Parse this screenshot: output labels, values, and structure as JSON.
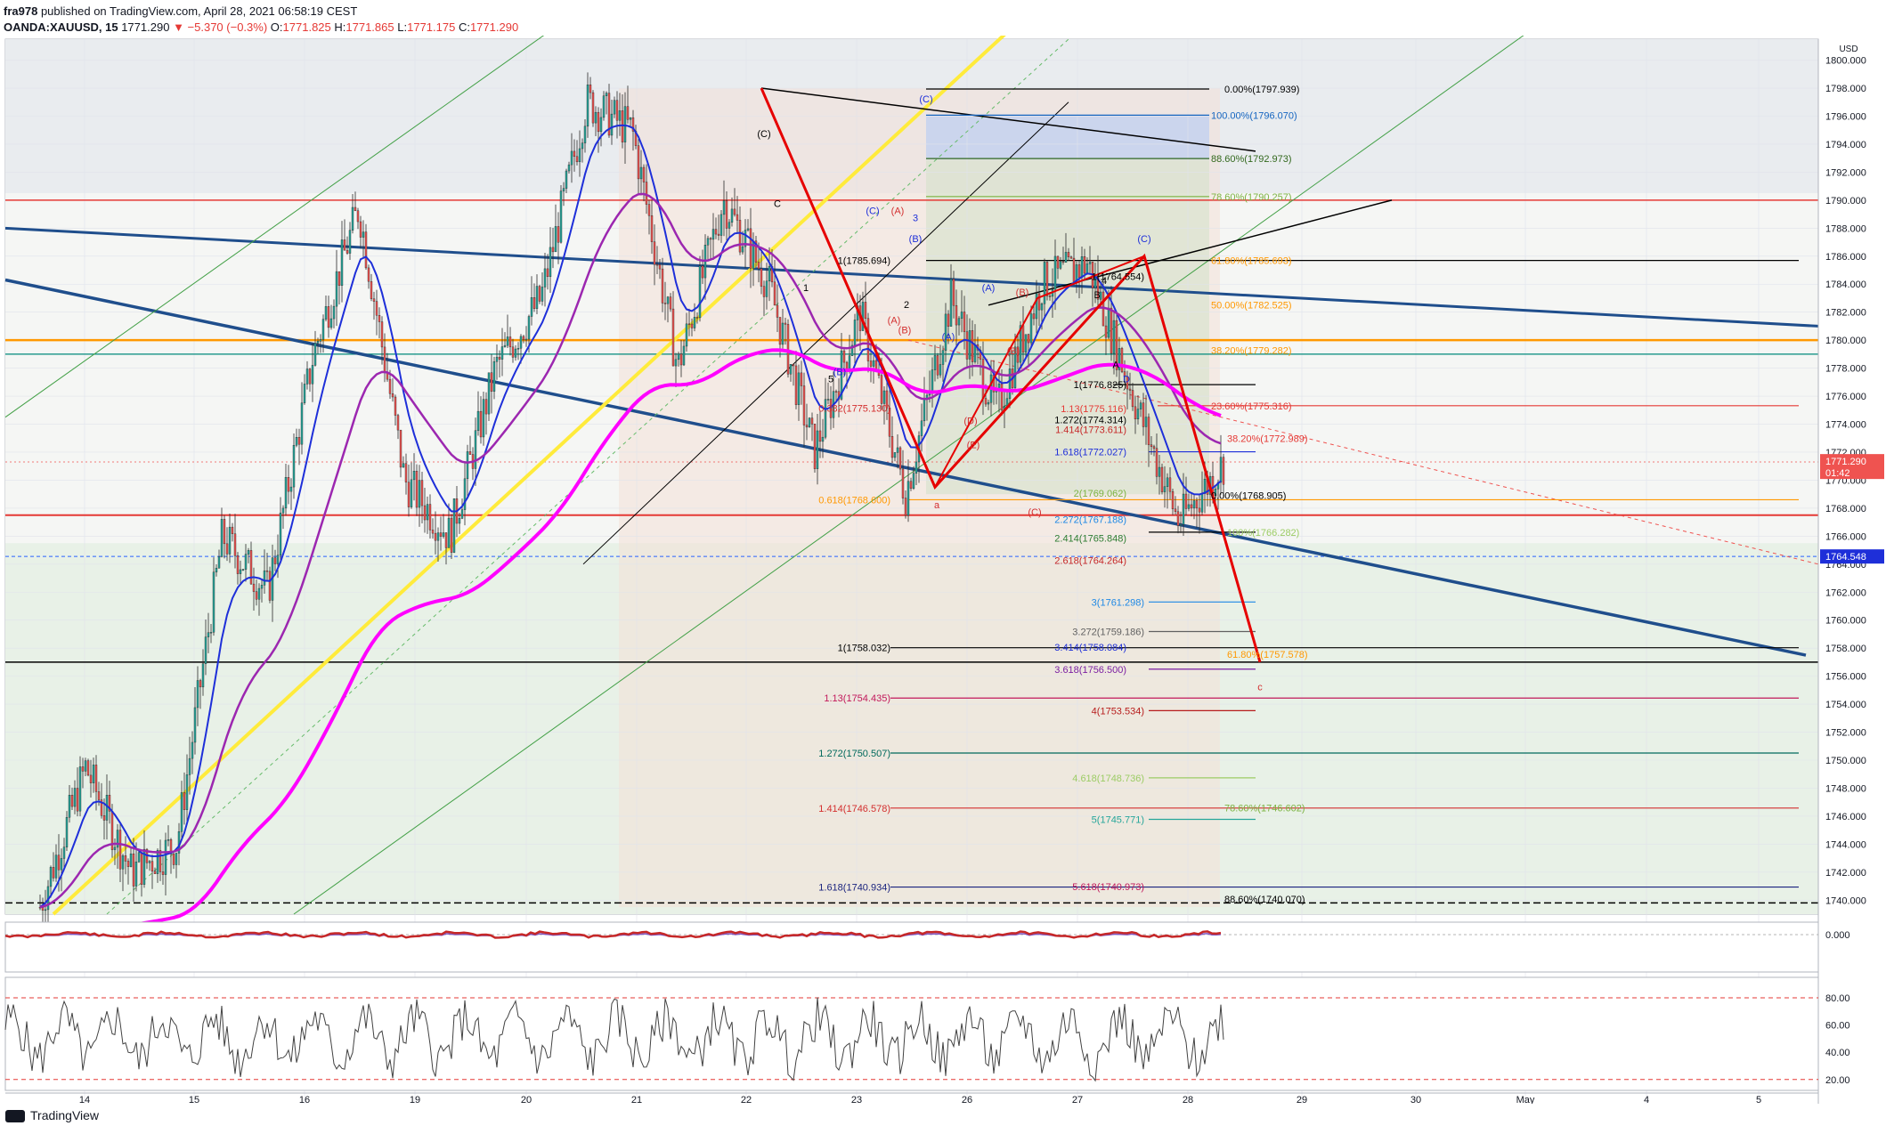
{
  "header": {
    "publisher": "fra978",
    "published_text": "published on TradingView.com, April 28, 2021 06:58:19 CEST",
    "symbol": "OANDA:XAUUSD, 15",
    "last": "1771.290",
    "change": "▼ −5.370 (−0.3%)",
    "o_label": "O:",
    "o": "1771.825",
    "h_label": "H:",
    "h": "1771.865",
    "l_label": "L:",
    "l": "1771.175",
    "c_label": "C:",
    "c": "1771.290"
  },
  "footer": {
    "brand": "TradingView"
  },
  "colors": {
    "up": "#26a69a",
    "down": "#ef5350",
    "yellow": "#ffeb3b",
    "magenta": "#ff00ff",
    "purple": "#9c27b0",
    "blue": "#1e2fd9",
    "navy": "#1f4e8c",
    "red": "#e60000"
  },
  "chart_data": [
    {
      "type": "candlestick",
      "currency": "USD",
      "ylim": [
        1739,
        1801.5
      ],
      "y_ticks": [
        "1800.000",
        "1798.000",
        "1796.000",
        "1794.000",
        "1792.000",
        "1790.000",
        "1788.000",
        "1786.000",
        "1784.000",
        "1782.000",
        "1780.000",
        "1778.000",
        "1776.000",
        "1774.000",
        "1772.000",
        "1770.000",
        "1768.000",
        "1766.000",
        "1764.000",
        "1762.000",
        "1760.000",
        "1758.000",
        "1756.000",
        "1754.000",
        "1752.000",
        "1750.000",
        "1748.000",
        "1746.000",
        "1744.000",
        "1742.000",
        "1740.000"
      ],
      "x_ticks": [
        "14",
        "15",
        "16",
        "19",
        "20",
        "21",
        "22",
        "23",
        "26",
        "27",
        "28",
        "29",
        "30",
        "May",
        "4",
        "5"
      ],
      "last_price_tag": {
        "price": "1771.290",
        "countdown": "01:42"
      },
      "blue_tag": "1764.548",
      "price_path": [
        [
          "14",
          1739.5
        ],
        [
          "14",
          1749.5
        ],
        [
          "15",
          1742
        ],
        [
          "15",
          1744
        ],
        [
          "16",
          1766
        ],
        [
          "16",
          1762
        ],
        [
          "19",
          1779
        ],
        [
          "19",
          1789.5
        ],
        [
          "20",
          1770
        ],
        [
          "20",
          1766
        ],
        [
          "21",
          1778
        ],
        [
          "21",
          1783
        ],
        [
          "22",
          1797
        ],
        [
          "22",
          1795
        ],
        [
          "23",
          1778
        ],
        [
          "23",
          1790
        ],
        [
          "23",
          1784
        ],
        [
          "26",
          1772
        ],
        [
          "26",
          1782
        ],
        [
          "26",
          1769
        ],
        [
          "27",
          1783
        ],
        [
          "27",
          1775
        ],
        [
          "27",
          1784
        ],
        [
          "28",
          1785.5
        ],
        [
          "28",
          1776
        ],
        [
          "28",
          1767
        ],
        [
          "28",
          1771.3
        ]
      ],
      "wave_labels": [
        "(C)",
        "(C)",
        "(A)",
        "(B)",
        "(A)",
        "(B)",
        "(A)",
        "(C)",
        "(B)",
        "(D)",
        "(B)",
        "(E)",
        "(A)",
        "(B)",
        "(C)",
        "(C)",
        "a",
        "c",
        "1",
        "2",
        "3",
        "4",
        "5",
        "A",
        "B",
        "C",
        "D"
      ],
      "fib_labels": [
        "0.00%(1797.939)",
        "100.00%(1796.070)",
        "88.60%(1792.973)",
        "78.60%(1790.257)",
        "61.80%(1785.693)",
        "50.00%(1782.525)",
        "38.20%(1779.282)",
        "23.60%(1775.316)",
        "38.20%(1772.989)",
        "0.00%(1768.905)",
        "1(1785.694)",
        "1(1764.554)",
        "1(1776.825)",
        "1.13(1775.116)",
        "1.272(1774.314)",
        "1.414(1773.611)",
        "1.618(1772.027)",
        "0.382(1775.130)",
        "0.618(1768.600)",
        "2(1769.062)",
        "2.272(1767.188)",
        "2.414(1765.848)",
        "2.618(1764.264)",
        "3(1761.298)",
        "3.272(1759.186)",
        "3.414(1758.084)",
        "3.618(1756.500)",
        "4(1753.534)",
        "4.618(1748.736)",
        "5(1745.771)",
        "5.618(1740.973)",
        "1(1758.032)",
        "1.13(1754.435)",
        "1.272(1750.507)",
        "1.414(1746.578)",
        "1.618(1740.934)",
        "61.80%(1757.578)",
        "78.60%(1746.602)",
        "88.60%(1740.070)",
        "100%(1766.282)"
      ]
    },
    {
      "type": "line",
      "ylim": [
        -1,
        1
      ],
      "y_ticks": [
        "0.000"
      ]
    },
    {
      "type": "line",
      "ylim": [
        12,
        95
      ],
      "y_ticks": [
        "80.00",
        "60.00",
        "40.00",
        "20.00"
      ],
      "bands": [
        80,
        20
      ]
    }
  ]
}
